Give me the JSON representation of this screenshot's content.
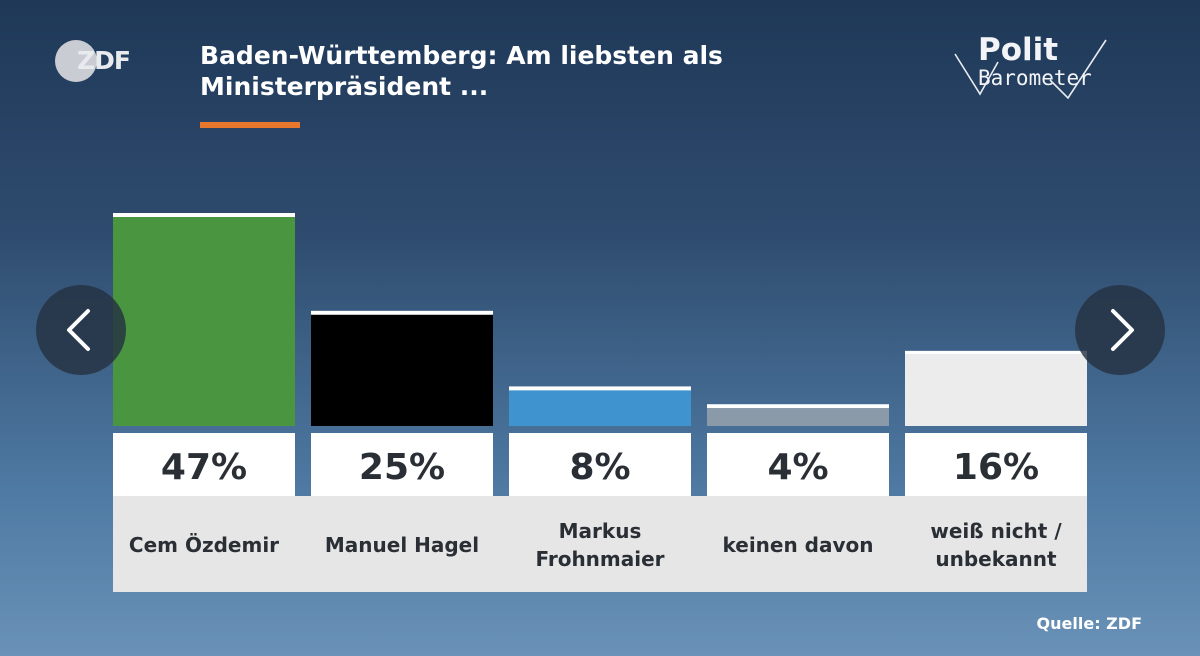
{
  "header": {
    "title_line1": "Baden-Württemberg: Am liebsten als",
    "title_line2": "Ministerpräsident ...",
    "logo_text": "ZDF",
    "brand_top": "Polit",
    "brand_bottom": "Barometer"
  },
  "source": "Quelle: ZDF",
  "nav": {
    "prev": "chevron-left-icon",
    "next": "chevron-right-icon"
  },
  "colors": {
    "accent": "#e8772e",
    "bar_oezdemir": "#4a9640",
    "bar_hagel": "#000000",
    "bar_frohnmaier": "#3f93cf",
    "bar_keinen": "#8a9aa8",
    "bar_unbekannt": "#ececec"
  },
  "chart_data": {
    "type": "bar",
    "categories": [
      [
        "Cem Özdemir"
      ],
      [
        "Manuel Hagel"
      ],
      [
        "Markus",
        "Frohnmaier"
      ],
      [
        "keinen davon"
      ],
      [
        "weiß nicht /",
        "unbekannt"
      ]
    ],
    "values": [
      47,
      25,
      8,
      4,
      16
    ],
    "value_labels": [
      "47%",
      "25%",
      "8%",
      "4%",
      "16%"
    ],
    "colors": [
      "#4a9640",
      "#000000",
      "#3f93cf",
      "#8a9aa8",
      "#ececec"
    ],
    "ylim": [
      0,
      47
    ],
    "grid": false,
    "legend": "none"
  }
}
